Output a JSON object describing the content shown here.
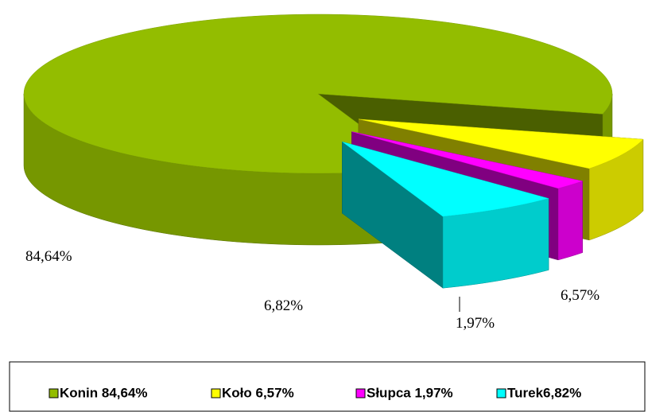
{
  "chart_data": {
    "type": "pie3d",
    "categories": [
      "Konin 84,64%",
      "Koło 6,57%",
      "Słupca 1,97%",
      "Turek6,82%"
    ],
    "values": [
      84.64,
      6.57,
      1.97,
      6.82
    ],
    "value_labels": [
      "84,64%",
      "6,57%",
      "1,97%",
      "6,82%"
    ],
    "colors": [
      "#93bd00",
      "#ffff00",
      "#ff00ff",
      "#00ffff"
    ],
    "legend": "bottom"
  }
}
